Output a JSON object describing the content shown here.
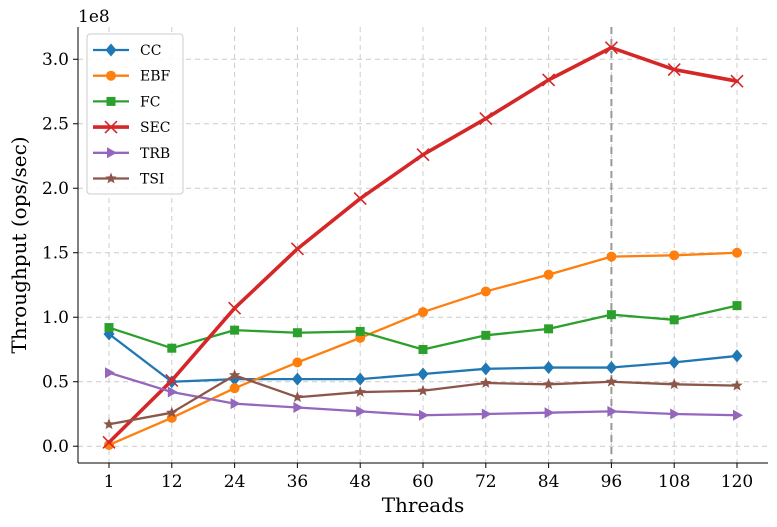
{
  "chart_data": {
    "type": "line",
    "title": "",
    "xlabel": "Threads",
    "ylabel": "Throughput (ops/sec)",
    "y_offset_label": "1e8",
    "categories": [
      "1",
      "12",
      "24",
      "36",
      "48",
      "60",
      "72",
      "84",
      "96",
      "108",
      "120"
    ],
    "ylim": [
      -0.13,
      3.25
    ],
    "yticks": [
      0.0,
      0.5,
      1.0,
      1.5,
      2.0,
      2.5,
      3.0
    ],
    "ytick_labels": [
      "0.0",
      "0.5",
      "1.0",
      "1.5",
      "2.0",
      "2.5",
      "3.0"
    ],
    "grid": true,
    "legend_position": "top-left",
    "vertical_reference_line": {
      "category": "96",
      "style": "dashed",
      "color": "#999999"
    },
    "series": [
      {
        "name": "CC",
        "color": "#1f77b4",
        "marker": "diamond",
        "values": [
          0.87,
          0.5,
          0.52,
          0.52,
          0.52,
          0.56,
          0.6,
          0.61,
          0.61,
          0.65,
          0.7
        ]
      },
      {
        "name": "EBF",
        "color": "#ff7f0e",
        "marker": "circle",
        "values": [
          0.01,
          0.22,
          0.45,
          0.65,
          0.84,
          1.04,
          1.2,
          1.33,
          1.47,
          1.48,
          1.5
        ]
      },
      {
        "name": "FC",
        "color": "#2ca02c",
        "marker": "square",
        "values": [
          0.92,
          0.76,
          0.9,
          0.88,
          0.89,
          0.75,
          0.86,
          0.91,
          1.02,
          0.98,
          1.09
        ]
      },
      {
        "name": "SEC",
        "color": "#d62728",
        "marker": "x",
        "thick": true,
        "values": [
          0.03,
          0.51,
          1.07,
          1.53,
          1.92,
          2.26,
          2.54,
          2.84,
          3.09,
          2.92,
          2.83
        ]
      },
      {
        "name": "TRB",
        "color": "#9467bd",
        "marker": "triangle-right",
        "values": [
          0.57,
          0.42,
          0.33,
          0.3,
          0.27,
          0.24,
          0.25,
          0.26,
          0.27,
          0.25,
          0.24
        ]
      },
      {
        "name": "TSI",
        "color": "#8c564b",
        "marker": "star",
        "values": [
          0.17,
          0.26,
          0.55,
          0.38,
          0.42,
          0.43,
          0.49,
          0.48,
          0.5,
          0.48,
          0.47
        ]
      }
    ]
  }
}
